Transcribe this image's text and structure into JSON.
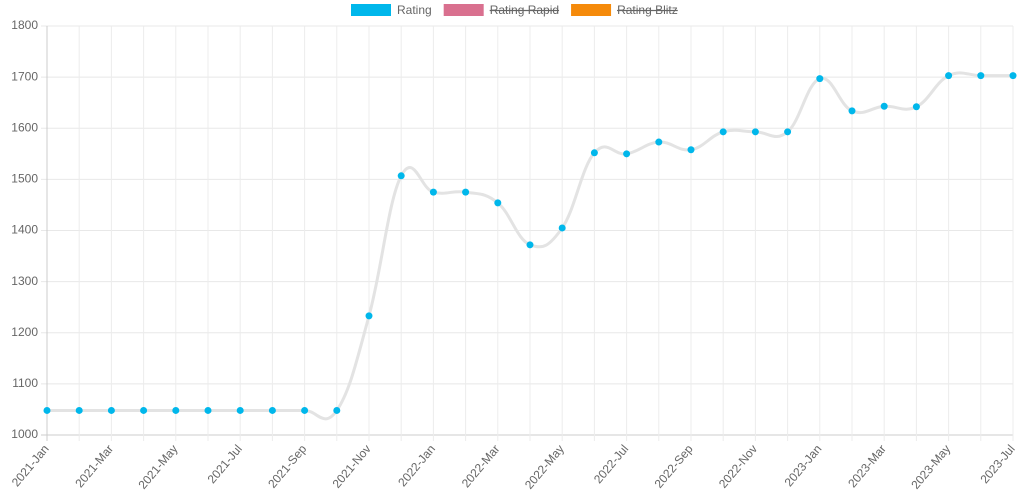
{
  "chart_data": {
    "type": "line",
    "categories": [
      "2021-Jan",
      null,
      "2021-Mar",
      null,
      "2021-May",
      null,
      "2021-Jul",
      null,
      "2021-Sep",
      null,
      "2021-Nov",
      null,
      "2022-Jan",
      null,
      "2022-Mar",
      null,
      "2022-May",
      null,
      "2022-Jul",
      null,
      "2022-Sep",
      null,
      "2022-Nov",
      null,
      "2023-Jan",
      null,
      "2023-Mar",
      null,
      "2023-May",
      null,
      "2023-Jul"
    ],
    "series": [
      {
        "name": "Rating",
        "color": "#00b7eb",
        "line_color": "#e3e3e3",
        "hidden": false,
        "values": [
          1048,
          1048,
          1048,
          1048,
          1048,
          1048,
          1048,
          1048,
          1048,
          1048,
          1233,
          1507,
          1475,
          1475,
          1454,
          1372,
          1405,
          1552,
          1550,
          1573,
          1558,
          1593,
          1593,
          1593,
          1697,
          1634,
          1643,
          1642,
          1703,
          1703,
          1703
        ]
      },
      {
        "name": "Rating Rapid",
        "color": "#d9708f",
        "hidden": true,
        "values": [
          null,
          null,
          null,
          null,
          null,
          null,
          null,
          null,
          null,
          null,
          null,
          null,
          null,
          null,
          null,
          null,
          null,
          null,
          null,
          null,
          null,
          null,
          null,
          null,
          null,
          null,
          null,
          null,
          null,
          null,
          null
        ]
      },
      {
        "name": "Rating Blitz",
        "color": "#f58a0b",
        "hidden": true,
        "values": [
          null,
          null,
          null,
          null,
          null,
          null,
          null,
          null,
          null,
          null,
          null,
          null,
          null,
          null,
          null,
          null,
          null,
          null,
          null,
          null,
          null,
          null,
          null,
          null,
          null,
          null,
          null,
          null,
          null,
          null,
          null
        ]
      }
    ],
    "ylim": [
      1000,
      1800
    ],
    "yticks": [
      1000,
      1100,
      1200,
      1300,
      1400,
      1500,
      1600,
      1700,
      1800
    ],
    "grid": true,
    "legend": "top"
  }
}
